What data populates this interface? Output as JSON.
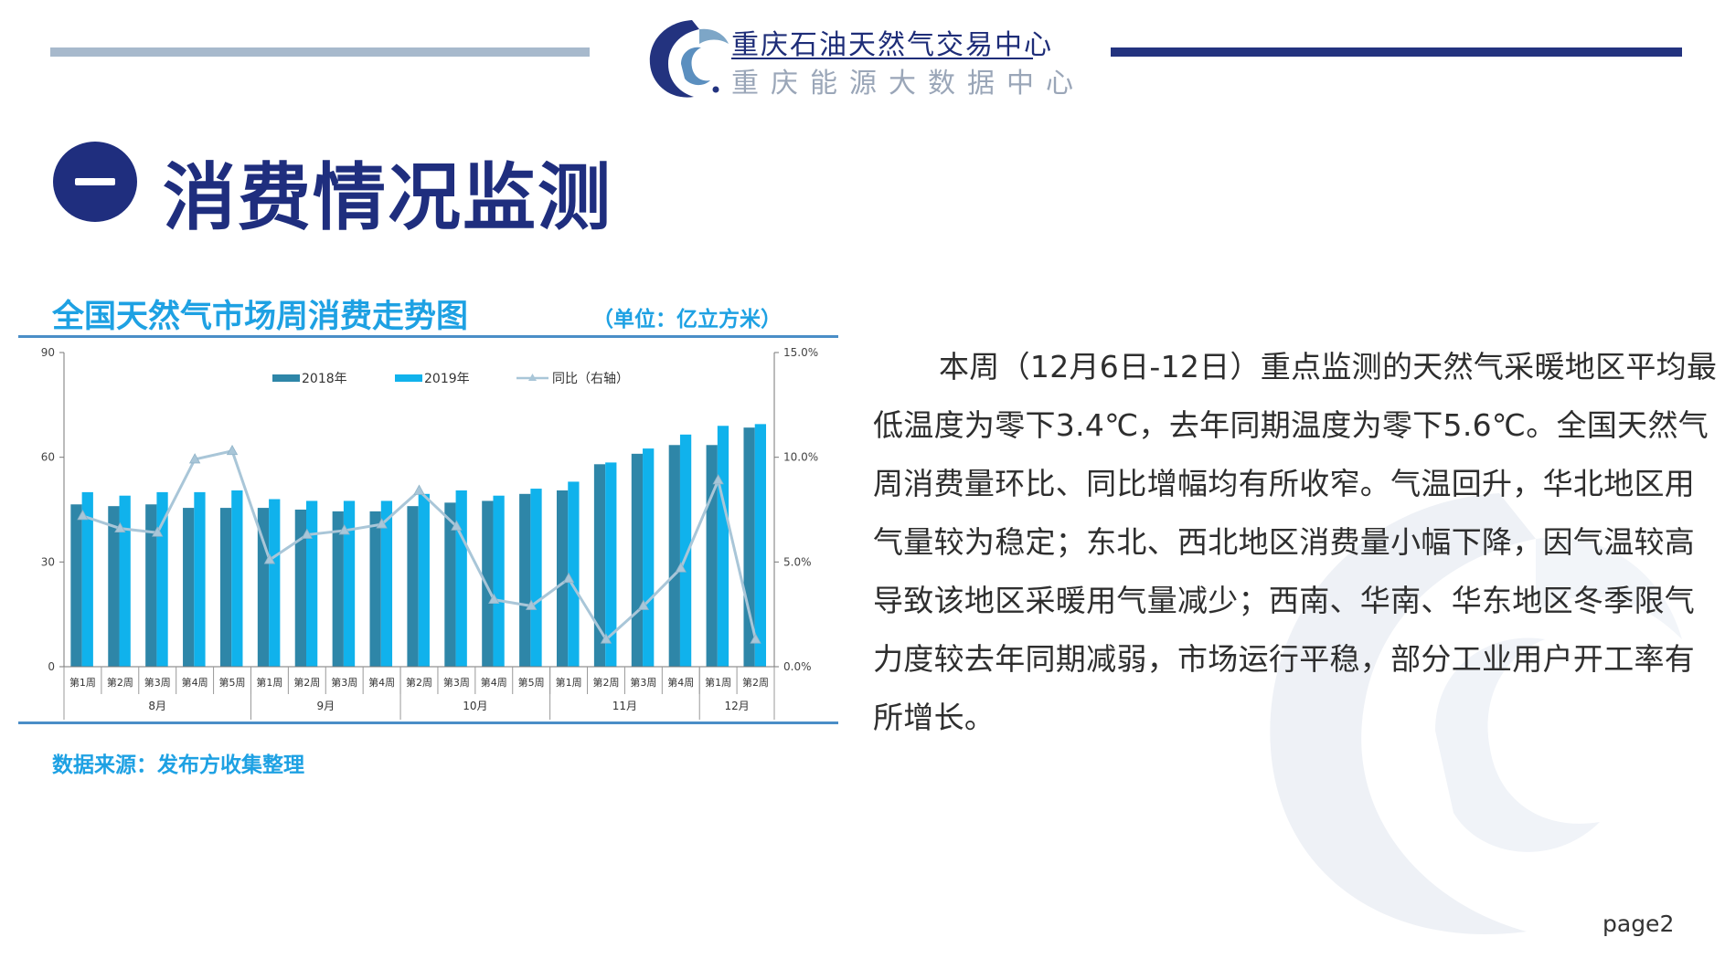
{
  "header": {
    "org_name": "重庆石油天然气交易中心",
    "org_subtitle": "重庆能源大数据中心"
  },
  "section": {
    "title": "消费情况监测"
  },
  "chart_panel": {
    "title": "全国天然气市场周消费走势图",
    "unit": "（单位：亿立方米）",
    "source": "数据来源：发布方收集整理"
  },
  "colors": {
    "navy": "#1f2e7e",
    "series_2018": "#2e86a8",
    "series_2019": "#10b2ec",
    "yoy_line": "#a9c6d8",
    "accent_text": "#1ea1e3"
  },
  "chart_data": {
    "type": "bar",
    "categories": [
      "第1周",
      "第2周",
      "第3周",
      "第4周",
      "第5周",
      "第1周",
      "第2周",
      "第3周",
      "第4周",
      "第2周",
      "第3周",
      "第4周",
      "第5周",
      "第1周",
      "第2周",
      "第3周",
      "第4周",
      "第1周",
      "第2周"
    ],
    "groups": [
      {
        "label": "8月",
        "count": 5
      },
      {
        "label": "9月",
        "count": 4
      },
      {
        "label": "10月",
        "count": 4
      },
      {
        "label": "11月",
        "count": 4
      },
      {
        "label": "12月",
        "count": 2
      }
    ],
    "series": [
      {
        "name": "2018年",
        "axis": "left",
        "values": [
          46.5,
          46,
          46.5,
          45.5,
          45.5,
          45.5,
          45,
          44.5,
          44.5,
          46,
          47,
          47.5,
          49.5,
          50.5,
          58,
          61,
          63.5,
          63.5,
          68.5
        ]
      },
      {
        "name": "2019年",
        "axis": "left",
        "values": [
          50,
          49,
          50,
          50,
          50.5,
          48,
          47.5,
          47.5,
          47.5,
          49.5,
          50.5,
          49,
          51,
          53,
          58.5,
          62.5,
          66.5,
          69,
          69.5
        ]
      },
      {
        "name": "同比（右轴）",
        "axis": "right",
        "type": "line",
        "values": [
          7.2,
          6.6,
          6.4,
          9.9,
          10.3,
          5.1,
          6.3,
          6.5,
          6.8,
          8.4,
          6.7,
          3.2,
          2.9,
          4.2,
          1.3,
          2.9,
          4.7,
          8.9,
          1.3
        ]
      }
    ],
    "ylim_left": [
      0,
      90
    ],
    "yticks_left": [
      "0",
      "30",
      "60",
      "90"
    ],
    "ylim_right": [
      0,
      15
    ],
    "yticks_right": [
      "0.0%",
      "5.0%",
      "10.0%",
      "15.0%"
    ],
    "legend_position": "top"
  },
  "body_text": "本周（12月6日-12日）重点监测的天然气采暖地区平均最低温度为零下3.4℃，去年同期温度为零下5.6℃。全国天然气周消费量环比、同比增幅均有所收窄。气温回升，华北地区用气量较为稳定；东北、西北地区消费量小幅下降，因气温较高导致该地区采暖用气量减少；西南、华南、华东地区冬季限气力度较去年同期减弱，市场运行平稳，部分工业用户开工率有所增长。",
  "footer": {
    "page_label": "page2"
  }
}
